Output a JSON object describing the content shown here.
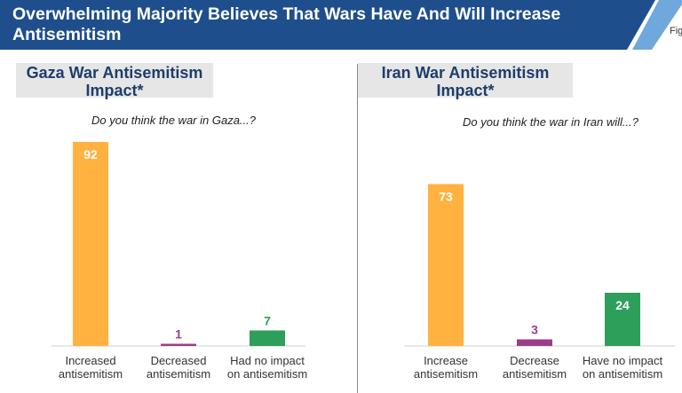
{
  "header": {
    "title": "Overwhelming Majority Believes That Wars Have And Will Increase Antisemitism",
    "fig_label": "Fig"
  },
  "colors": {
    "header_bg": "#1f4e8c",
    "header_accent": "#6fa8dc",
    "panel_title": "#1e3d6b",
    "increase": "#ffb23f",
    "decrease": "#9b3d8a",
    "no_impact": "#2e9e5b"
  },
  "chart_data": [
    {
      "type": "bar",
      "title": "Gaza War Antisemitism Impact*",
      "subtitle": "Do you think the war in Gaza...?",
      "categories": [
        "Increased antisemitism",
        "Decreased antisemitism",
        "Had no impact on antisemitism"
      ],
      "category_lines": [
        [
          "Increased",
          "antisemitism"
        ],
        [
          "Decreased",
          "antisemitism"
        ],
        [
          "Had no impact",
          "on antisemitism"
        ]
      ],
      "values": [
        92,
        1,
        7
      ],
      "colors": [
        "#ffb23f",
        "#9b3d8a",
        "#2e9e5b"
      ],
      "ylim": [
        0,
        100
      ],
      "grid": false
    },
    {
      "type": "bar",
      "title": "Iran War Antisemitism Impact*",
      "subtitle": "Do you think the war in Iran will...?",
      "categories": [
        "Increase antisemitism",
        "Decrease antisemitism",
        "Have no impact on antisemitism"
      ],
      "category_lines": [
        [
          "Increase",
          "antisemitism"
        ],
        [
          "Decrease",
          "antisemitism"
        ],
        [
          "Have no impact",
          "on antisemitism"
        ]
      ],
      "values": [
        73,
        3,
        24
      ],
      "colors": [
        "#ffb23f",
        "#9b3d8a",
        "#2e9e5b"
      ],
      "ylim": [
        0,
        100
      ],
      "grid": false
    }
  ]
}
